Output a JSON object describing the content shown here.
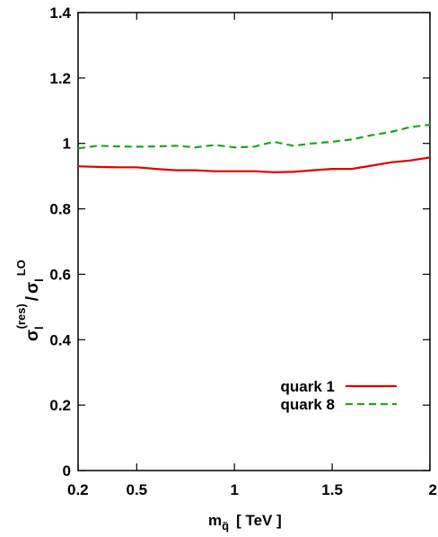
{
  "chart_data": {
    "type": "line",
    "xlim": [
      0.2,
      2.0
    ],
    "ylim": [
      0,
      1.4
    ],
    "x_ticks": [
      0.2,
      0.5,
      1,
      1.5,
      2
    ],
    "x_tick_labels": [
      "0.2",
      "0.5",
      "1",
      "1.5",
      "2"
    ],
    "y_ticks": [
      0,
      0.2,
      0.4,
      0.6,
      0.8,
      1,
      1.2,
      1.4
    ],
    "y_tick_labels": [
      "0",
      "0.2",
      "0.4",
      "0.6",
      "0.8",
      "1",
      "1.2",
      "1.4"
    ],
    "xlabel": {
      "main": "m",
      "sub": "q̃",
      "rest": "[ TeV ]"
    },
    "ylabel": {
      "sigma": "σ",
      "sub_l": "l",
      "sup_res": "(res)",
      "slash": "/",
      "sup_lo": "LO"
    },
    "grid": false,
    "legend_position": "bottom-right",
    "series": [
      {
        "name": "quark 1",
        "color": "#e00000",
        "dash": "solid",
        "x": [
          0.2,
          0.3,
          0.4,
          0.5,
          0.6,
          0.7,
          0.8,
          0.9,
          1.0,
          1.1,
          1.2,
          1.3,
          1.4,
          1.5,
          1.6,
          1.7,
          1.8,
          1.9,
          2.0
        ],
        "y": [
          0.93,
          0.928,
          0.927,
          0.927,
          0.922,
          0.918,
          0.918,
          0.915,
          0.915,
          0.915,
          0.912,
          0.913,
          0.918,
          0.922,
          0.922,
          0.932,
          0.942,
          0.948,
          0.957
        ]
      },
      {
        "name": "quark 8",
        "color": "#1fa51f",
        "dash": "dashed",
        "x": [
          0.2,
          0.3,
          0.4,
          0.5,
          0.6,
          0.7,
          0.8,
          0.9,
          1.0,
          1.1,
          1.2,
          1.3,
          1.4,
          1.5,
          1.6,
          1.7,
          1.8,
          1.9,
          2.0
        ],
        "y": [
          0.985,
          0.993,
          0.991,
          0.99,
          0.991,
          0.993,
          0.988,
          0.995,
          0.988,
          0.99,
          1.005,
          0.993,
          1.0,
          1.005,
          1.012,
          1.025,
          1.035,
          1.05,
          1.057
        ]
      }
    ]
  }
}
